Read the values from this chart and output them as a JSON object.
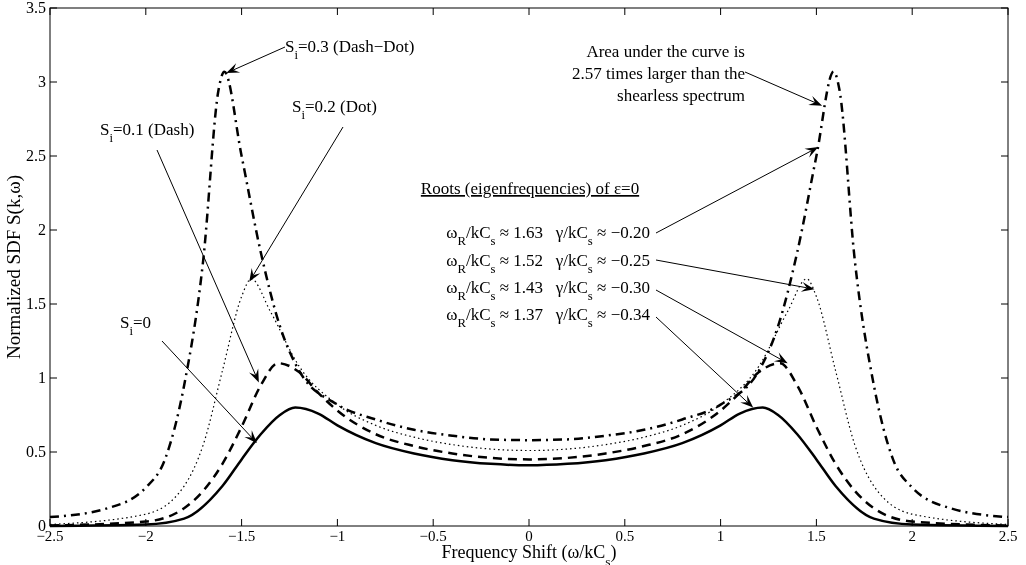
{
  "chart_data": {
    "type": "line",
    "xlabel": "Frequency Shift (ω/kC$_{s}$)",
    "ylabel": "Normalized SDF S(k,ω)",
    "xlim": [
      -2.5,
      2.5
    ],
    "ylim": [
      0,
      3.5
    ],
    "xticks": [
      {
        "value": -2.5,
        "label": "−2.5"
      },
      {
        "value": -2,
        "label": "−2"
      },
      {
        "value": -1.5,
        "label": "−1.5"
      },
      {
        "value": -1,
        "label": "−1"
      },
      {
        "value": -0.5,
        "label": "−0.5"
      },
      0,
      0.5,
      1,
      1.5,
      2,
      2.5
    ],
    "yticks": [
      0,
      0.5,
      1,
      1.5,
      2,
      2.5,
      3,
      3.5
    ],
    "series": [
      {
        "color": "#000000",
        "line_style": "solid",
        "x": [
          -2.5,
          -2,
          -1.8,
          -1.6,
          -1.5,
          -1.4,
          -1.3,
          -1.22,
          -1.1,
          -1,
          -0.8,
          -0.6,
          -0.4,
          -0.2,
          0,
          0.2,
          0.4,
          0.6,
          0.8,
          1,
          1.1,
          1.22,
          1.3,
          1.4,
          1.5,
          1.6,
          1.8,
          2,
          2.5
        ],
        "values": [
          0,
          0.01,
          0.05,
          0.27,
          0.45,
          0.62,
          0.75,
          0.8,
          0.76,
          0.68,
          0.56,
          0.49,
          0.445,
          0.42,
          0.41,
          0.42,
          0.445,
          0.49,
          0.56,
          0.68,
          0.76,
          0.8,
          0.75,
          0.62,
          0.45,
          0.27,
          0.05,
          0.01,
          0
        ]
      },
      {
        "color": "#000000",
        "line_style": "dashed",
        "x": [
          -2.5,
          -2,
          -1.8,
          -1.6,
          -1.5,
          -1.4,
          -1.31,
          -1.2,
          -1.1,
          -1,
          -0.8,
          -0.6,
          -0.4,
          -0.2,
          0,
          0.2,
          0.4,
          0.6,
          0.8,
          1,
          1.1,
          1.2,
          1.31,
          1.4,
          1.5,
          1.6,
          1.8,
          2,
          2.5
        ],
        "values": [
          0.003,
          0.03,
          0.12,
          0.42,
          0.67,
          0.95,
          1.1,
          1.04,
          0.9,
          0.78,
          0.62,
          0.54,
          0.49,
          0.46,
          0.45,
          0.46,
          0.49,
          0.54,
          0.62,
          0.78,
          0.9,
          1.04,
          1.1,
          0.95,
          0.67,
          0.42,
          0.12,
          0.03,
          0.003
        ]
      },
      {
        "color": "#000000",
        "line_style": "dotted",
        "x": [
          -2.5,
          -2,
          -1.8,
          -1.7,
          -1.6,
          -1.5,
          -1.45,
          -1.35,
          -1.2,
          -1,
          -0.8,
          -0.6,
          -0.4,
          -0.2,
          0,
          0.2,
          0.4,
          0.6,
          0.8,
          1,
          1.2,
          1.35,
          1.45,
          1.5,
          1.6,
          1.7,
          1.8,
          2,
          2.5
        ],
        "values": [
          0.01,
          0.08,
          0.27,
          0.55,
          1.05,
          1.55,
          1.67,
          1.45,
          1.08,
          0.82,
          0.68,
          0.6,
          0.55,
          0.52,
          0.51,
          0.52,
          0.55,
          0.6,
          0.68,
          0.82,
          1.08,
          1.45,
          1.67,
          1.55,
          1.05,
          0.55,
          0.27,
          0.08,
          0.01
        ]
      },
      {
        "color": "#000000",
        "line_style": "dashdot",
        "x": [
          -2.5,
          -2.2,
          -2,
          -1.9,
          -1.8,
          -1.7,
          -1.62,
          -1.59,
          -1.5,
          -1.4,
          -1.3,
          -1.2,
          -1,
          -0.8,
          -0.6,
          -0.4,
          -0.2,
          0,
          0.2,
          0.4,
          0.6,
          0.8,
          1,
          1.2,
          1.3,
          1.4,
          1.5,
          1.59,
          1.62,
          1.7,
          1.8,
          1.9,
          2,
          2.2,
          2.5
        ],
        "values": [
          0.06,
          0.12,
          0.26,
          0.45,
          0.95,
          1.8,
          2.95,
          3.07,
          2.5,
          1.85,
          1.35,
          1.05,
          0.82,
          0.72,
          0.65,
          0.61,
          0.585,
          0.58,
          0.585,
          0.61,
          0.65,
          0.72,
          0.82,
          1.05,
          1.35,
          1.85,
          2.5,
          3.07,
          2.95,
          1.8,
          0.95,
          0.45,
          0.26,
          0.12,
          0.06
        ]
      }
    ],
    "annotations": [
      {
        "text": "S$_{i}$=0.3 (Dash−Dot)",
        "x": -1.58,
        "y": 3.06
      },
      {
        "text": "S$_{i}$=0.2 (Dot)",
        "x": -1.46,
        "y": 1.65
      },
      {
        "text": "S$_{i}$=0.1 (Dash)",
        "x": -1.41,
        "y": 0.97
      },
      {
        "text": "S$_{i}$=0",
        "x": -1.42,
        "y": 0.56
      },
      {
        "text": "Area under the curve is 2.57 times larger than the shearless spectrum",
        "x": 1.53,
        "y": 2.84
      },
      "Roots (eigenfrequencies) of ε=0",
      {
        "text": "ω$_{R}$/kC$_{s}$ ≈ 1.63   γ/kC$_{s}$ ≈ −0.20",
        "x": 1.51,
        "y": 2.56
      },
      {
        "text": "ω$_{R}$/kC$_{s}$ ≈ 1.52   γ/kC$_{s}$ ≈ −0.25",
        "x": 1.49,
        "y": 1.6
      },
      {
        "text": "ω$_{R}$/kC$_{s}$ ≈ 1.43   γ/kC$_{s}$ ≈ −0.30",
        "x": 1.35,
        "y": 1.1
      },
      {
        "text": "ω$_{R}$/kC$_{s}$ ≈ 1.37   γ/kC$_{s}$ ≈ −0.34",
        "x": 1.17,
        "y": 0.8
      }
    ]
  }
}
